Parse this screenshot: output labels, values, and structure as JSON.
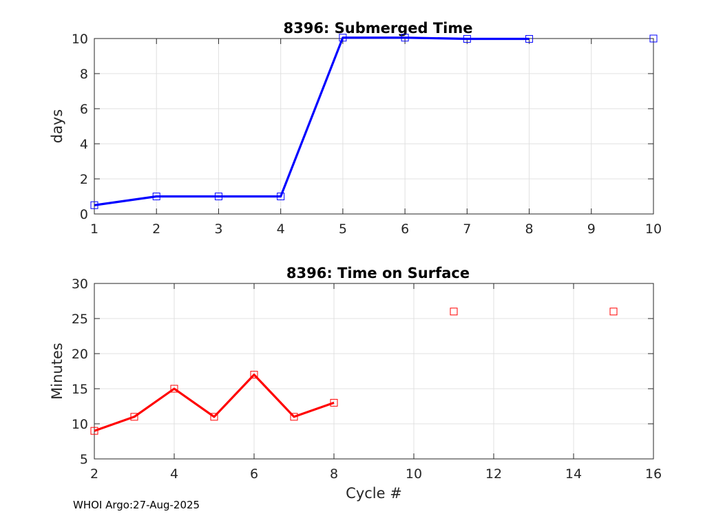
{
  "footer": "WHOI Argo:27-Aug-2025",
  "chart_data": [
    {
      "type": "line",
      "title": "8396: Submerged Time",
      "xlabel": "",
      "ylabel": "days",
      "xlim": [
        1,
        10
      ],
      "ylim": [
        0,
        10
      ],
      "xticks": [
        1,
        2,
        3,
        4,
        5,
        6,
        7,
        8,
        9,
        10
      ],
      "yticks": [
        0,
        2,
        4,
        6,
        8,
        10
      ],
      "grid": true,
      "color": "#0000ff",
      "series": [
        {
          "line_x": [
            1,
            2,
            3,
            4,
            5,
            6,
            7,
            8
          ],
          "line_y": [
            0.5,
            1.0,
            1.0,
            1.0,
            10.05,
            10.05,
            9.98,
            9.98
          ],
          "marker_x": [
            1,
            2,
            3,
            4,
            5,
            6,
            7,
            8,
            10
          ],
          "marker_y": [
            0.5,
            1.0,
            1.0,
            1.0,
            10.05,
            10.05,
            9.98,
            9.98,
            10.0
          ]
        }
      ]
    },
    {
      "type": "line",
      "title": "8396: Time on Surface",
      "xlabel": "Cycle #",
      "ylabel": "Minutes",
      "xlim": [
        2,
        16
      ],
      "ylim": [
        5,
        30
      ],
      "xticks": [
        2,
        4,
        6,
        8,
        10,
        12,
        14,
        16
      ],
      "yticks": [
        5,
        10,
        15,
        20,
        25,
        30
      ],
      "grid": true,
      "color": "#ff0000",
      "series": [
        {
          "line_x": [
            2,
            3,
            4,
            5,
            6,
            7,
            8
          ],
          "line_y": [
            9,
            11,
            15,
            11,
            17,
            11,
            13
          ],
          "marker_x": [
            2,
            3,
            4,
            5,
            6,
            7,
            8,
            11,
            15
          ],
          "marker_y": [
            9,
            11,
            15,
            11,
            17,
            11,
            13,
            26,
            26
          ]
        }
      ]
    }
  ]
}
